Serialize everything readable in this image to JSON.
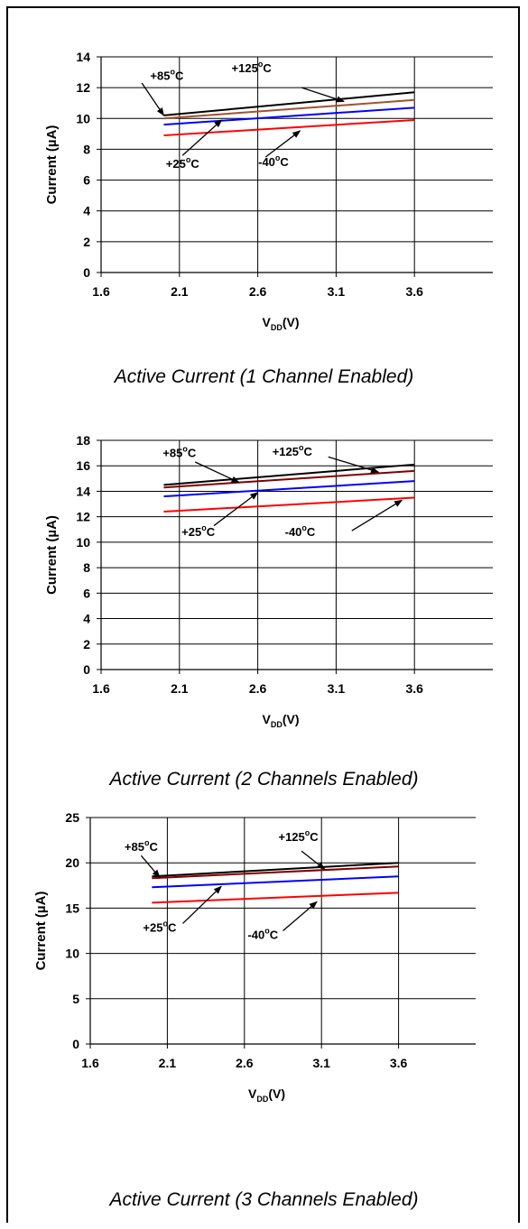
{
  "chart_data": [
    {
      "type": "line",
      "caption": "Active Current (1 Channel Enabled)",
      "xlabel_main": "V",
      "xlabel_sub": "DD",
      "xlabel_tail": "(V)",
      "ylabel": "Current (µA)",
      "x_ticks": [
        "1.6",
        "2.1",
        "2.6",
        "3.1",
        "3.6"
      ],
      "y_ticks": [
        "0",
        "2",
        "4",
        "6",
        "8",
        "10",
        "12",
        "14"
      ],
      "xlim": [
        1.6,
        4.1
      ],
      "ylim": [
        0,
        14
      ],
      "x": [
        2.0,
        3.6
      ],
      "series": [
        {
          "name": "+125°C",
          "color": "#000000",
          "values": [
            10.2,
            11.7
          ]
        },
        {
          "name": "+85°C",
          "color": "#a0522d",
          "values": [
            10.0,
            11.2
          ]
        },
        {
          "name": "+25°C",
          "color": "#0000ff",
          "values": [
            9.6,
            10.7
          ]
        },
        {
          "name": "-40°C",
          "color": "#ff0000",
          "values": [
            8.9,
            9.9
          ]
        }
      ],
      "annotations": [
        {
          "label": "+85°C",
          "lx": 2.02,
          "ly": 12.5,
          "tx": 1.86,
          "ty": 12.3,
          "ax": 2.0,
          "ay": 10.2
        },
        {
          "label": "+125°C",
          "lx": 2.56,
          "ly": 13.0,
          "tx": 2.88,
          "ty": 12.0,
          "ax": 3.15,
          "ay": 11.1
        },
        {
          "label": "+25°C",
          "lx": 2.12,
          "ly": 6.8,
          "tx": 2.12,
          "ty": 7.6,
          "ax": 2.37,
          "ay": 9.9
        },
        {
          "label": "-40°C",
          "lx": 2.7,
          "ly": 6.9,
          "tx": 2.65,
          "ty": 7.5,
          "ax": 2.87,
          "ay": 9.2
        }
      ]
    },
    {
      "type": "line",
      "caption": "Active Current (2 Channels Enabled)",
      "xlabel_main": "V",
      "xlabel_sub": "DD",
      "xlabel_tail": "(V)",
      "ylabel": "Current (µA)",
      "x_ticks": [
        "1.6",
        "2.1",
        "2.6",
        "3.1",
        "3.6"
      ],
      "y_ticks": [
        "0",
        "2",
        "4",
        "6",
        "8",
        "10",
        "12",
        "14",
        "16",
        "18"
      ],
      "xlim": [
        1.6,
        4.1
      ],
      "ylim": [
        0,
        18
      ],
      "x": [
        2.0,
        3.6
      ],
      "series": [
        {
          "name": "+125°C",
          "color": "#000000",
          "values": [
            14.5,
            16.1
          ]
        },
        {
          "name": "+85°C",
          "color": "#800000",
          "values": [
            14.3,
            15.6
          ]
        },
        {
          "name": "+25°C",
          "color": "#0000ff",
          "values": [
            13.6,
            14.8
          ]
        },
        {
          "name": "-40°C",
          "color": "#ff0000",
          "values": [
            12.4,
            13.5
          ]
        }
      ],
      "annotations": [
        {
          "label": "+85°C",
          "lx": 2.1,
          "ly": 16.7,
          "tx": 2.2,
          "ty": 16.3,
          "ax": 2.48,
          "ay": 14.7
        },
        {
          "label": "+125°C",
          "lx": 2.82,
          "ly": 16.8,
          "tx": 3.05,
          "ty": 16.7,
          "ax": 3.37,
          "ay": 15.5
        },
        {
          "label": "+25°C",
          "lx": 2.22,
          "ly": 10.5,
          "tx": 2.32,
          "ty": 11.3,
          "ax": 2.6,
          "ay": 13.9
        },
        {
          "label": "-40°C",
          "lx": 2.87,
          "ly": 10.5,
          "tx": 3.2,
          "ty": 10.9,
          "ax": 3.52,
          "ay": 13.3
        }
      ]
    },
    {
      "type": "line",
      "caption": "Active Current (3 Channels Enabled)",
      "xlabel_main": "V",
      "xlabel_sub": "DD",
      "xlabel_tail": "(V)",
      "ylabel": "Current (µA)",
      "x_ticks": [
        "1.6",
        "2.1",
        "2.6",
        "3.1",
        "3.6"
      ],
      "y_ticks": [
        "0",
        "5",
        "10",
        "15",
        "20",
        "25"
      ],
      "xlim": [
        1.6,
        4.1
      ],
      "ylim": [
        0,
        25
      ],
      "x": [
        2.0,
        3.6
      ],
      "series": [
        {
          "name": "+125°C",
          "color": "#000000",
          "values": [
            18.5,
            20.0
          ]
        },
        {
          "name": "+85°C",
          "color": "#800000",
          "values": [
            18.3,
            19.6
          ]
        },
        {
          "name": "+25°C",
          "color": "#0000ff",
          "values": [
            17.3,
            18.5
          ]
        },
        {
          "name": "-40°C",
          "color": "#ff0000",
          "values": [
            15.6,
            16.7
          ]
        }
      ],
      "annotations": [
        {
          "label": "+85°C",
          "lx": 1.93,
          "ly": 21.3,
          "tx": 1.93,
          "ty": 20.8,
          "ax": 2.05,
          "ay": 18.4
        },
        {
          "label": "+125°C",
          "lx": 2.95,
          "ly": 22.4,
          "tx": 2.97,
          "ty": 21.3,
          "ax": 3.12,
          "ay": 19.3
        },
        {
          "label": "+25°C",
          "lx": 2.05,
          "ly": 12.4,
          "tx": 2.2,
          "ty": 13.3,
          "ax": 2.45,
          "ay": 17.4
        },
        {
          "label": "-40°C",
          "lx": 2.72,
          "ly": 11.6,
          "tx": 2.85,
          "ty": 12.5,
          "ax": 3.07,
          "ay": 15.7
        }
      ]
    }
  ]
}
